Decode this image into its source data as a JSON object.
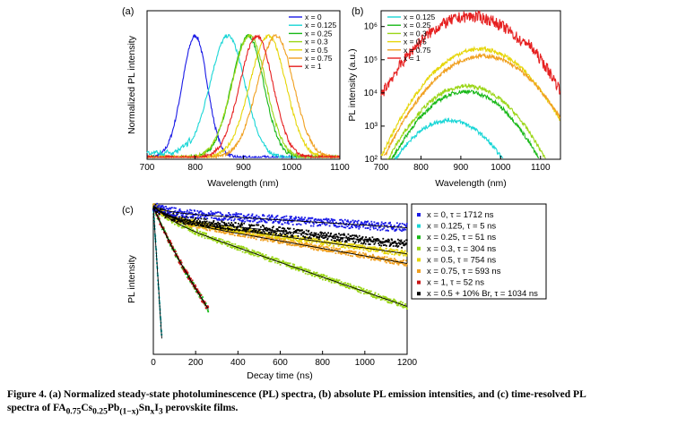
{
  "caption": {
    "line1": "Figure 4. (a) Normalized steady-state photoluminescence (PL) spectra, (b) absolute PL emission intensities, and (c) time-resolved PL",
    "line2_prefix": "spectra of FA",
    "s1": "0.75",
    "t1": "Cs",
    "s2": "0.25",
    "t2": "Pb",
    "s3": "(1−x)",
    "t3": "Sn",
    "s4": "x",
    "t4": "I",
    "s5": "3",
    "line2_suffix": " perovskite films."
  },
  "chart_data": [
    {
      "type": "line",
      "panel_label": "(a)",
      "xlabel": "Wavelength (nm)",
      "ylabel": "Normalized PL intensity",
      "xlim": [
        700,
        1100
      ],
      "xticks": [
        "700",
        "800",
        "900",
        "1000",
        "1100"
      ],
      "legend_position": "top-right",
      "series": [
        {
          "name": "x = 0",
          "peak": 800,
          "width": 25,
          "color": "#1a1ae6"
        },
        {
          "name": "x = 0.125",
          "peak": 868,
          "width": 35,
          "color": "#19d6d6"
        },
        {
          "name": "x = 0.25",
          "peak": 910,
          "width": 32,
          "color": "#18b818"
        },
        {
          "name": "x = 0.3",
          "peak": 913,
          "width": 34,
          "color": "#9bd618"
        },
        {
          "name": "x = 0.5",
          "peak": 952,
          "width": 36,
          "color": "#e6d60a"
        },
        {
          "name": "x = 0.75",
          "peak": 968,
          "width": 36,
          "color": "#f0a020"
        },
        {
          "name": "x = 1",
          "peak": 928,
          "width": 33,
          "color": "#e62020"
        }
      ]
    },
    {
      "type": "line",
      "panel_label": "(b)",
      "xlabel": "Wavelength (nm)",
      "ylabel": "PL intensity (a.u.)",
      "xlim": [
        700,
        1150
      ],
      "ylim": [
        100,
        3000000
      ],
      "yscale": "log",
      "xticks": [
        "700",
        "800",
        "900",
        "1000",
        "1100"
      ],
      "yticks": [
        "10²",
        "10³",
        "10⁴",
        "10⁵",
        "10⁶"
      ],
      "legend_position": "top-left",
      "series": [
        {
          "name": "x = 0.125",
          "peak_nm": 870,
          "peak_value": 1500,
          "color": "#19d6d6"
        },
        {
          "name": "x = 0.25",
          "peak_nm": 912,
          "peak_value": 11000,
          "color": "#18b818"
        },
        {
          "name": "x = 0.3",
          "peak_nm": 915,
          "peak_value": 16000,
          "color": "#9bd618"
        },
        {
          "name": "x = 0.5",
          "peak_nm": 948,
          "peak_value": 210000,
          "color": "#e6d60a"
        },
        {
          "name": "x = 0.75",
          "peak_nm": 955,
          "peak_value": 130000,
          "color": "#f0a020"
        },
        {
          "name": "x = 1",
          "peak_nm": 925,
          "peak_value": 2000000,
          "color": "#e62020"
        }
      ]
    },
    {
      "type": "scatter",
      "panel_label": "(c)",
      "xlabel": "Decay time (ns)",
      "ylabel": "PL intensity",
      "xlim": [
        0,
        1200
      ],
      "xticks": [
        "0",
        "200",
        "400",
        "600",
        "800",
        "1000",
        "1200"
      ],
      "legend_position": "right",
      "series": [
        {
          "name": "x = 0,  τ = 1712 ns",
          "tau": 1712,
          "color": "#1a1ae6"
        },
        {
          "name": "x = 0.125,  τ = 5 ns",
          "tau": 5,
          "color": "#19d6d6"
        },
        {
          "name": "x = 0.25,  τ = 51 ns",
          "tau": 51,
          "color": "#18b818"
        },
        {
          "name": "x = 0.3,  τ = 304 ns",
          "tau": 304,
          "color": "#9bd618"
        },
        {
          "name": "x = 0.5,  τ = 754 ns",
          "tau": 754,
          "color": "#e6d60a"
        },
        {
          "name": "x = 0.75,  τ = 593 ns",
          "tau": 593,
          "color": "#f0a020"
        },
        {
          "name": "x = 1,  τ = 52 ns",
          "tau": 52,
          "color": "#c81414"
        },
        {
          "name": "x = 0.5 + 10% Br,  τ = 1034 ns",
          "tau": 1034,
          "color": "#000000"
        }
      ]
    }
  ]
}
